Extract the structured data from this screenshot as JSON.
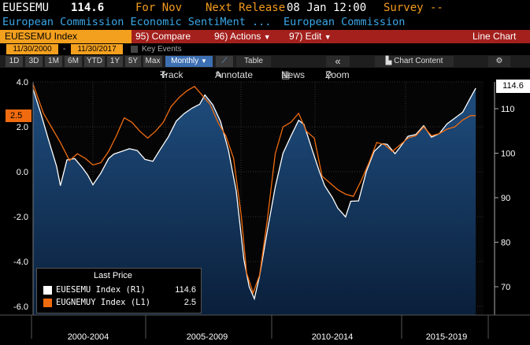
{
  "header": {
    "ticker": "EUESEMU",
    "last": "114.6",
    "for_label": "For Nov",
    "next_release_label": "Next Release",
    "next_release_value": "08 Jan 12:00",
    "survey_label": "Survey --",
    "description": "European Commission Economic SentiMent ...",
    "source": "European Commission"
  },
  "toolbar": {
    "ticker_box": "EUESEMU Index",
    "compare": "95) Compare",
    "actions": "96) Actions",
    "edit": "97) Edit",
    "chart_type": "Line Chart"
  },
  "daterange": {
    "start": "11/30/2000",
    "sep": "-",
    "end": "11/30/2017",
    "key_events": "Key Events"
  },
  "periods": [
    "1D",
    "3D",
    "1M",
    "6M",
    "YTD",
    "1Y",
    "5Y",
    "Max"
  ],
  "frequency": "Monthly",
  "table_label": "Table",
  "chart_content_label": "Chart Content",
  "chart_tools": {
    "track": "Track",
    "annotate": "Annotate",
    "news": "News",
    "zoom": "Zoom"
  },
  "legend": {
    "header": "Last Price",
    "items": [
      {
        "name": "EUESEMU Index  (R1)",
        "value": "114.6",
        "color": "#ffffff"
      },
      {
        "name": "EUGNEMUY Index  (L1)",
        "value": "2.5",
        "color": "#f06b0f"
      }
    ]
  },
  "flags": {
    "right": "114.6",
    "left": "2.5"
  },
  "chart_data": {
    "type": "line",
    "x_tick_labels": [
      "2000-2004",
      "2005-2009",
      "2010-2014",
      "2015-2019"
    ],
    "left_axis": {
      "ticks": [
        "4.0",
        "2.0",
        "0.0",
        "-2.0",
        "-4.0",
        "-6.0"
      ],
      "range": [
        -6.0,
        4.0
      ]
    },
    "right_axis": {
      "ticks": [
        "110",
        "100",
        "90",
        "80",
        "70"
      ],
      "range": [
        65,
        117
      ]
    },
    "series": [
      {
        "name": "EUESEMU Index",
        "axis": "R1",
        "color": "#ffffff",
        "values": [
          [
            2000.9,
            114.4
          ],
          [
            2001.2,
            108.9
          ],
          [
            2001.5,
            102.9
          ],
          [
            2001.8,
            97.1
          ],
          [
            2001.95,
            92.7
          ],
          [
            2002.2,
            98.5
          ],
          [
            2002.5,
            98.8
          ],
          [
            2002.8,
            96.7
          ],
          [
            2003.0,
            95.1
          ],
          [
            2003.2,
            92.9
          ],
          [
            2003.5,
            95.5
          ],
          [
            2003.8,
            98.8
          ],
          [
            2004.0,
            99.8
          ],
          [
            2004.3,
            100.4
          ],
          [
            2004.6,
            101.0
          ],
          [
            2004.9,
            100.6
          ],
          [
            2005.2,
            98.6
          ],
          [
            2005.5,
            98.2
          ],
          [
            2005.8,
            101.0
          ],
          [
            2006.1,
            103.7
          ],
          [
            2006.4,
            107.2
          ],
          [
            2006.7,
            108.9
          ],
          [
            2007.0,
            110.1
          ],
          [
            2007.3,
            111.0
          ],
          [
            2007.5,
            113.1
          ],
          [
            2007.8,
            110.9
          ],
          [
            2008.1,
            107.1
          ],
          [
            2008.4,
            100.7
          ],
          [
            2008.7,
            91.6
          ],
          [
            2009.0,
            76.0
          ],
          [
            2009.2,
            70.0
          ],
          [
            2009.4,
            67.3
          ],
          [
            2009.6,
            72.5
          ],
          [
            2009.9,
            82.7
          ],
          [
            2010.2,
            92.4
          ],
          [
            2010.5,
            100.0
          ],
          [
            2010.8,
            103.8
          ],
          [
            2011.1,
            107.4
          ],
          [
            2011.3,
            106.5
          ],
          [
            2011.6,
            101.1
          ],
          [
            2011.9,
            95.8
          ],
          [
            2012.1,
            92.7
          ],
          [
            2012.4,
            90.0
          ],
          [
            2012.6,
            87.7
          ],
          [
            2012.9,
            85.7
          ],
          [
            2013.1,
            89.2
          ],
          [
            2013.4,
            89.3
          ],
          [
            2013.7,
            95.9
          ],
          [
            2014.0,
            100.4
          ],
          [
            2014.3,
            102.1
          ],
          [
            2014.5,
            102.0
          ],
          [
            2014.8,
            99.9
          ],
          [
            2015.0,
            101.4
          ],
          [
            2015.3,
            103.8
          ],
          [
            2015.6,
            104.2
          ],
          [
            2015.9,
            106.2
          ],
          [
            2016.2,
            103.6
          ],
          [
            2016.5,
            104.4
          ],
          [
            2016.8,
            106.6
          ],
          [
            2017.1,
            107.9
          ],
          [
            2017.4,
            109.2
          ],
          [
            2017.7,
            112.5
          ],
          [
            2017.9,
            114.6
          ]
        ]
      },
      {
        "name": "EUGNEMUY Index",
        "axis": "L1",
        "color": "#f06b0f",
        "values": [
          [
            2000.9,
            3.9
          ],
          [
            2001.3,
            2.6
          ],
          [
            2001.6,
            2.0
          ],
          [
            2001.95,
            1.3
          ],
          [
            2002.3,
            0.5
          ],
          [
            2002.6,
            0.8
          ],
          [
            2002.9,
            0.6
          ],
          [
            2003.2,
            0.3
          ],
          [
            2003.5,
            0.4
          ],
          [
            2003.8,
            0.9
          ],
          [
            2004.1,
            1.6
          ],
          [
            2004.4,
            2.4
          ],
          [
            2004.7,
            2.2
          ],
          [
            2005.0,
            1.8
          ],
          [
            2005.3,
            1.5
          ],
          [
            2005.6,
            1.8
          ],
          [
            2005.9,
            2.2
          ],
          [
            2006.2,
            2.9
          ],
          [
            2006.5,
            3.3
          ],
          [
            2006.8,
            3.6
          ],
          [
            2007.1,
            3.8
          ],
          [
            2007.4,
            3.4
          ],
          [
            2007.7,
            3.0
          ],
          [
            2008.0,
            2.2
          ],
          [
            2008.3,
            1.6
          ],
          [
            2008.6,
            0.6
          ],
          [
            2008.9,
            -2.0
          ],
          [
            2009.1,
            -4.5
          ],
          [
            2009.35,
            -5.4
          ],
          [
            2009.6,
            -4.6
          ],
          [
            2009.9,
            -2.1
          ],
          [
            2010.2,
            0.8
          ],
          [
            2010.5,
            2.0
          ],
          [
            2010.8,
            2.2
          ],
          [
            2011.1,
            2.6
          ],
          [
            2011.4,
            1.8
          ],
          [
            2011.7,
            1.5
          ],
          [
            2012.0,
            -0.2
          ],
          [
            2012.3,
            -0.5
          ],
          [
            2012.6,
            -0.8
          ],
          [
            2012.9,
            -1.0
          ],
          [
            2013.2,
            -1.1
          ],
          [
            2013.5,
            -0.4
          ],
          [
            2013.8,
            0.4
          ],
          [
            2014.1,
            1.3
          ],
          [
            2014.4,
            1.2
          ],
          [
            2014.7,
            0.9
          ],
          [
            2015.0,
            1.2
          ],
          [
            2015.3,
            1.5
          ],
          [
            2015.6,
            1.6
          ],
          [
            2015.9,
            2.0
          ],
          [
            2016.2,
            1.6
          ],
          [
            2016.5,
            1.7
          ],
          [
            2016.8,
            1.9
          ],
          [
            2017.1,
            2.0
          ],
          [
            2017.4,
            2.3
          ],
          [
            2017.7,
            2.5
          ],
          [
            2017.9,
            2.5
          ]
        ]
      }
    ]
  }
}
